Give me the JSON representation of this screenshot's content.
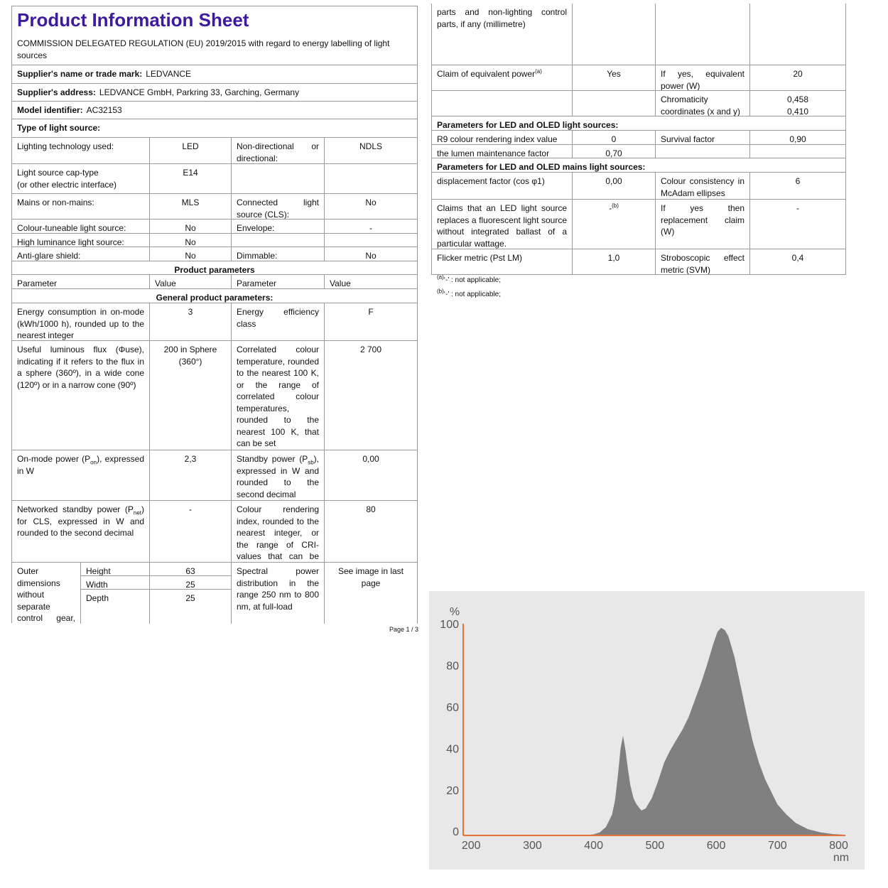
{
  "left_sheet": {
    "title": "Product Information Sheet",
    "regulation": "COMMISSION DELEGATED REGULATION (EU) 2019/2015 with regard to energy labelling of light sources",
    "supplier_name": {
      "label": "Supplier's name or trade mark:",
      "value": "LEDVANCE"
    },
    "supplier_address": {
      "label": "Supplier's address:",
      "value": "LEDVANCE GmbH, Parkring 33, Garching, Germany"
    },
    "model": {
      "label": "Model identifier:",
      "value": "AC32153"
    },
    "type_heading": "Type of light source:",
    "type_rows": [
      [
        "Lighting technology used:",
        "LED",
        "Non-directional or directional:",
        "NDLS"
      ],
      [
        [
          "Light source cap-type",
          "(or other electric interface)"
        ],
        "E14",
        null,
        null
      ],
      [
        "Mains or non-mains:",
        "MLS",
        "Connected light source (CLS):",
        "No"
      ],
      [
        "Colour-tuneable light source:",
        "No",
        "Envelope:",
        "-"
      ],
      [
        "High luminance light source:",
        "No",
        null,
        null
      ],
      [
        "Anti-glare shield:",
        "No",
        "Dimmable:",
        "No"
      ]
    ],
    "product_parameters": "Product parameters",
    "header": [
      "Parameter",
      "Value",
      "Parameter",
      "Value"
    ],
    "general": "General product parameters:",
    "general_rows": [
      [
        "Energy consumption in on-mode (kWh/1000 h), rounded up to the nearest integer",
        3,
        "Energy efficiency class",
        "F"
      ],
      [
        "Useful luminous flux (Φuse), indicating if it refers to the flux in a sphere (360º), in a wide cone (120º) or in a narrow cone (90º)",
        "200 in Sphere (360°)",
        "Correlated colour temperature, rounded to the nearest 100 K, or the range of correlated colour temperatures, rounded to the nearest 100 K, that can be set",
        "2 700"
      ],
      [
        {
          "text": "On-mode power (P",
          "sub": "on",
          "after": "), expressed in W"
        },
        "2,3",
        {
          "text": "Standby power (P",
          "sub": "sb",
          "after": "), expressed in W and rounded to the second decimal"
        },
        "0,00"
      ],
      [
        {
          "text": "Networked standby power (P",
          "sub": "net",
          "after": ") for CLS, expressed in W and rounded to the second decimal"
        },
        "-",
        "Colour rendering index, rounded to the nearest integer, or the range of CRI-values that can be set",
        80
      ]
    ],
    "dimensions": {
      "label": "Outer dimensions without separate control gear, lighting control",
      "items": [
        {
          "name": "Height",
          "value": 63
        },
        {
          "name": "Width",
          "value": 25
        },
        {
          "name": "Depth",
          "value": 25
        }
      ],
      "parameter": "Spectral power distribution in the range 250 nm to 800 nm, at full-load",
      "value": "See image in last page"
    },
    "page": "Page 1 / 3"
  },
  "right_sheet": {
    "rows": [
      [
        "parts and non-lighting control parts, if any (millimetre)",
        null,
        null,
        null
      ],
      [
        {
          "text": "Claim of equivalent power",
          "sup": "(a)"
        },
        "Yes",
        "If yes, equivalent power (W)",
        20
      ],
      [
        null,
        null,
        "Chromaticity coordinates (x and y)",
        [
          "0,458",
          "0,410"
        ]
      ],
      {
        "heading": "Parameters for LED and OLED light sources:"
      },
      [
        "R9 colour rendering index value",
        0,
        "Survival factor",
        "0,90"
      ],
      [
        "the lumen maintenance factor",
        "0,70",
        null,
        null
      ],
      {
        "heading": "Parameters for LED and OLED mains light sources:"
      },
      [
        "displacement factor (cos φ1)",
        "0,00",
        "Colour consistency in McAdam ellipses",
        6
      ],
      [
        "Claims that an LED light source replaces a fluorescent light source without integrated ballast of a particular wattage.",
        {
          "text": "-",
          "sup": "(b)"
        },
        "If yes then replacement claim (W)",
        "-"
      ],
      [
        "Flicker metric (Pst LM)",
        "1,0",
        "Stroboscopic effect metric (SVM)",
        "0,4"
      ]
    ],
    "footnotes": [
      {
        "mark": "(a)",
        "text": "‘-’ : not applicable;"
      },
      {
        "mark": "(b)",
        "text": "‘-’ : not applicable;"
      }
    ]
  },
  "chart_data": {
    "type": "area",
    "y_label": "%",
    "x_label": "nm",
    "color": "#808080",
    "axis_color": "#e8703a",
    "background": "#e8e8e8",
    "x": [
      350,
      380,
      400,
      410,
      420,
      430,
      435,
      440,
      444,
      448,
      452,
      456,
      460,
      465,
      470,
      478,
      485,
      495,
      505,
      515,
      525,
      535,
      545,
      555,
      565,
      575,
      585,
      595,
      602,
      608,
      614,
      620,
      630,
      640,
      650,
      660,
      670,
      680,
      690,
      700,
      715,
      730,
      750,
      770,
      790,
      811
    ],
    "values": [
      0,
      0,
      0.5,
      1.5,
      4,
      10,
      17,
      30,
      42,
      48,
      41,
      32,
      24,
      18,
      15,
      12,
      13,
      18,
      26,
      35,
      41,
      46,
      51,
      57,
      65,
      73,
      82,
      92,
      98,
      100,
      99,
      96,
      86,
      72,
      58,
      45,
      35,
      27,
      21,
      15,
      10,
      6,
      3,
      1.5,
      0.7,
      0.3
    ],
    "xlim": [
      187,
      811
    ],
    "ylim": [
      0,
      102
    ],
    "xticks": [
      200,
      300,
      400,
      500,
      600,
      700,
      800
    ],
    "yticks": [
      0,
      20,
      40,
      60,
      80,
      100
    ],
    "grid": false
  }
}
